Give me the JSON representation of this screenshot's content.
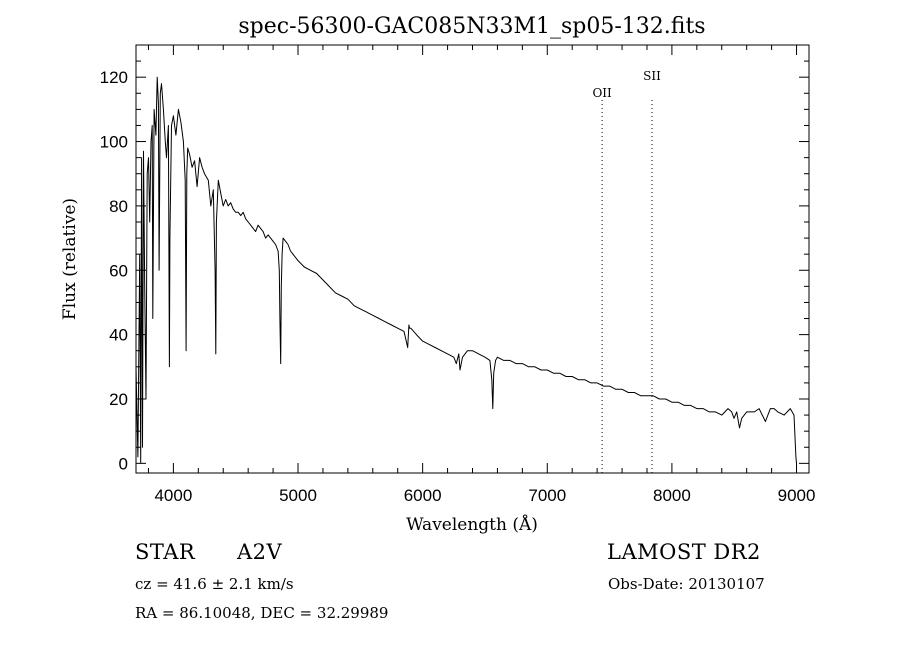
{
  "chart_data": {
    "type": "line",
    "title": "spec-56300-GAC085N33M1_sp05-132.fits",
    "xlabel": "Wavelength (Å)",
    "ylabel": "Flux (relative)",
    "xlim": [
      3700,
      9100
    ],
    "ylim": [
      -3,
      130
    ],
    "xticks": [
      4000,
      5000,
      6000,
      7000,
      8000,
      9000
    ],
    "yticks": [
      0,
      20,
      40,
      60,
      80,
      100,
      120
    ],
    "grid": false,
    "series": [
      {
        "x": [
          3700,
          3715,
          3730,
          3738,
          3745,
          3752,
          3760,
          3770,
          3780,
          3790,
          3800,
          3810,
          3820,
          3830,
          3835,
          3845,
          3860,
          3870,
          3880,
          3885,
          3895,
          3905,
          3920,
          3935,
          3945,
          3960,
          3968,
          3972,
          3985,
          4000,
          4020,
          4040,
          4060,
          4080,
          4095,
          4102,
          4108,
          4115,
          4130,
          4150,
          4170,
          4190,
          4210,
          4230,
          4250,
          4280,
          4300,
          4320,
          4335,
          4340,
          4345,
          4360,
          4380,
          4400,
          4420,
          4440,
          4460,
          4480,
          4500,
          4520,
          4540,
          4560,
          4580,
          4600,
          4620,
          4640,
          4660,
          4680,
          4700,
          4720,
          4740,
          4760,
          4780,
          4800,
          4820,
          4840,
          4850,
          4855,
          4861,
          4866,
          4872,
          4880,
          4900,
          4920,
          4940,
          4960,
          4980,
          5000,
          5050,
          5100,
          5150,
          5200,
          5250,
          5300,
          5350,
          5400,
          5450,
          5500,
          5550,
          5600,
          5650,
          5700,
          5750,
          5800,
          5850,
          5880,
          5890,
          5895,
          5905,
          5950,
          6000,
          6050,
          6100,
          6150,
          6200,
          6250,
          6270,
          6290,
          6300,
          6320,
          6360,
          6400,
          6450,
          6500,
          6540,
          6555,
          6563,
          6570,
          6585,
          6600,
          6650,
          6700,
          6750,
          6800,
          6850,
          6900,
          6950,
          7000,
          7050,
          7100,
          7150,
          7200,
          7250,
          7300,
          7350,
          7400,
          7450,
          7500,
          7550,
          7600,
          7650,
          7700,
          7750,
          7800,
          7850,
          7900,
          7950,
          8000,
          8050,
          8100,
          8150,
          8200,
          8250,
          8300,
          8350,
          8400,
          8450,
          8480,
          8498,
          8520,
          8542,
          8560,
          8600,
          8662,
          8700,
          8750,
          8790,
          8820,
          8850,
          8900,
          8950,
          8980,
          8995,
          9000
        ],
        "y": [
          30,
          2,
          65,
          0,
          95,
          5,
          97,
          55,
          20,
          90,
          95,
          75,
          100,
          105,
          45,
          110,
          102,
          120,
          112,
          60,
          115,
          118,
          110,
          100,
          95,
          105,
          30,
          70,
          105,
          108,
          102,
          110,
          106,
          100,
          88,
          35,
          90,
          98,
          96,
          92,
          94,
          86,
          95,
          92,
          90,
          88,
          80,
          85,
          60,
          34,
          75,
          88,
          84,
          80,
          82,
          80,
          81,
          79,
          78,
          78,
          77,
          78,
          76,
          75,
          74,
          73,
          72,
          74,
          73,
          72,
          70,
          71,
          70,
          69,
          68,
          66,
          60,
          45,
          31,
          55,
          65,
          70,
          69,
          68,
          66,
          65,
          64,
          63,
          61,
          60,
          59,
          57,
          55,
          53,
          52,
          51,
          49,
          48,
          47,
          46,
          45,
          44,
          43,
          42,
          41,
          36,
          43,
          42,
          42,
          40,
          38,
          37,
          36,
          35,
          34,
          33,
          31,
          34,
          29,
          33,
          35,
          35,
          34,
          33,
          32,
          26,
          17,
          28,
          32,
          33,
          32,
          32,
          31,
          31,
          30,
          30,
          29,
          29,
          28,
          28,
          27,
          27,
          26,
          26,
          25,
          25,
          24,
          24,
          23,
          23,
          22,
          22,
          21,
          21,
          21,
          20,
          20,
          19,
          19,
          18,
          18,
          17,
          17,
          16,
          16,
          15,
          17,
          16,
          14,
          16,
          11,
          14,
          16,
          16,
          17,
          13,
          17,
          17,
          16,
          15,
          17,
          15,
          2,
          0
        ]
      }
    ],
    "annotations": [
      {
        "label": "OII",
        "x": 7440
      },
      {
        "label": "SII",
        "x": 7840
      }
    ]
  },
  "footer": {
    "object_class": "STAR",
    "subclass": "A2V",
    "survey": "LAMOST DR2",
    "redshift": "cz = 41.6 ± 2.1 km/s",
    "obs_date": "Obs-Date: 20130107",
    "coords": "RA =  86.10048, DEC =  32.29989"
  }
}
